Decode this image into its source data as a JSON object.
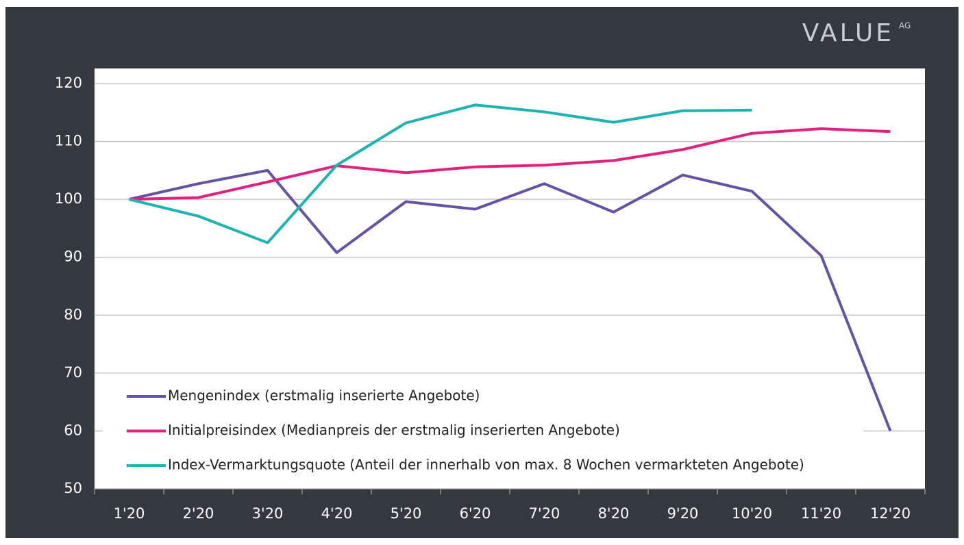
{
  "chart_data": {
    "type": "line",
    "logo": "VALUE",
    "logo_suffix": "AG",
    "categories": [
      "1'20",
      "2'20",
      "3'20",
      "4'20",
      "5'20",
      "6'20",
      "7'20",
      "8'20",
      "9'20",
      "10'20",
      "11'20",
      "12'20"
    ],
    "series": [
      {
        "name": "Mengenindex (erstmalig inserierte Angebote)",
        "color": "#6652a3",
        "values": [
          100,
          102.7,
          105,
          90.8,
          99.6,
          98.3,
          102.7,
          97.8,
          104.2,
          101.4,
          90.3,
          60
        ]
      },
      {
        "name": "Initialpreisindex (Medianpreis der erstmalig inserierten Angebote)",
        "color": "#e2217f",
        "values": [
          100,
          100.3,
          103,
          105.8,
          104.6,
          105.6,
          105.9,
          106.7,
          108.6,
          111.4,
          112.2,
          111.7
        ]
      },
      {
        "name": "Index-Vermarktungsquote (Anteil der innerhalb von max. 8 Wochen vermarkteten Angebote)",
        "color": "#1db3b0",
        "values": [
          100,
          97.1,
          92.5,
          105.9,
          113.2,
          116.3,
          115.1,
          113.3,
          115.3,
          115.4,
          null,
          null
        ]
      }
    ],
    "ylim": [
      50,
      122.6
    ],
    "yticks": [
      50,
      60,
      70,
      80,
      90,
      100,
      110,
      120
    ],
    "grid": true,
    "legend": "lower left"
  }
}
